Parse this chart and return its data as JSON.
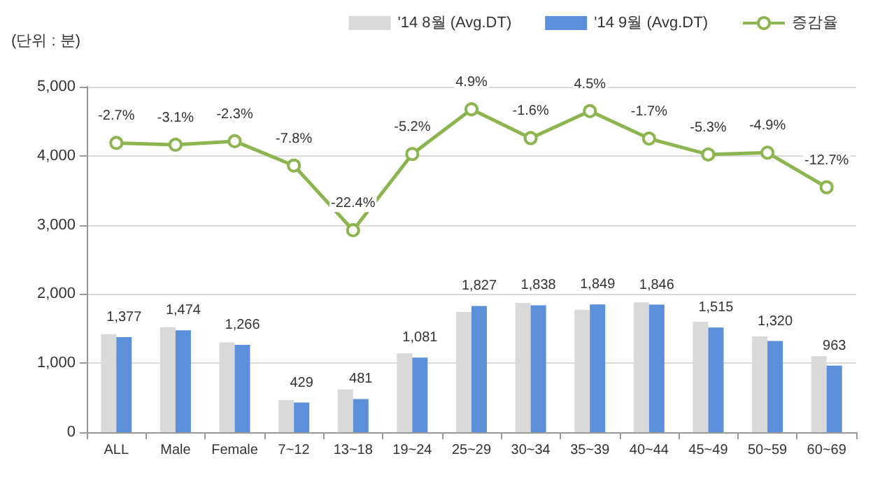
{
  "chart_data": {
    "type": "bar",
    "annotations": [
      "(단위 : 분)"
    ],
    "categories": [
      "ALL",
      "Male",
      "Female",
      "7~12",
      "13~18",
      "19~24",
      "25~29",
      "30~34",
      "35~39",
      "40~44",
      "45~49",
      "50~59",
      "60~69"
    ],
    "series": [
      {
        "name": "'14 8월 (Avg.DT)",
        "color": "#d9d9d9",
        "values": [
          1420,
          1520,
          1300,
          465,
          620,
          1140,
          1740,
          1870,
          1770,
          1880,
          1600,
          1390,
          1100
        ]
      },
      {
        "name": "'14 9월 (Avg.DT)",
        "color": "#5b8fd9",
        "values": [
          1377,
          1474,
          1266,
          429,
          481,
          1081,
          1827,
          1838,
          1849,
          1846,
          1515,
          1320,
          963
        ],
        "value_labels": [
          "1,377",
          "1,474",
          "1,266",
          "429",
          "481",
          "1,081",
          "1,827",
          "1,838",
          "1,849",
          "1,846",
          "1,515",
          "1,320",
          "963"
        ]
      },
      {
        "name": "증감율",
        "type": "line",
        "axis": "y2",
        "color": "#8db54f",
        "marker": "circle",
        "values": [
          -2.7,
          -3.1,
          -2.3,
          -7.8,
          -22.4,
          -5.2,
          4.9,
          -1.6,
          4.5,
          -1.7,
          -5.3,
          -4.9,
          -12.7
        ],
        "value_labels": [
          "-2.7%",
          "-3.1%",
          "-2.3%",
          "-7.8%",
          "-22.4%",
          "-5.2%",
          "4.9%",
          "-1.6%",
          "4.5%",
          "-1.7%",
          "-5.3%",
          "-4.9%",
          "-12.7%"
        ]
      }
    ],
    "ylim": [
      0,
      5000
    ],
    "yticks": [
      0,
      {
        "value": 1000,
        "label": "1,000"
      },
      {
        "value": 2000,
        "label": "2,000"
      },
      {
        "value": 3000,
        "label": "3,000"
      },
      {
        "value": 4000,
        "label": "4,000"
      },
      {
        "value": 5000,
        "label": "5,000"
      }
    ],
    "y2lim": [
      -68,
      10
    ],
    "grid": "y",
    "legend": "top right"
  }
}
